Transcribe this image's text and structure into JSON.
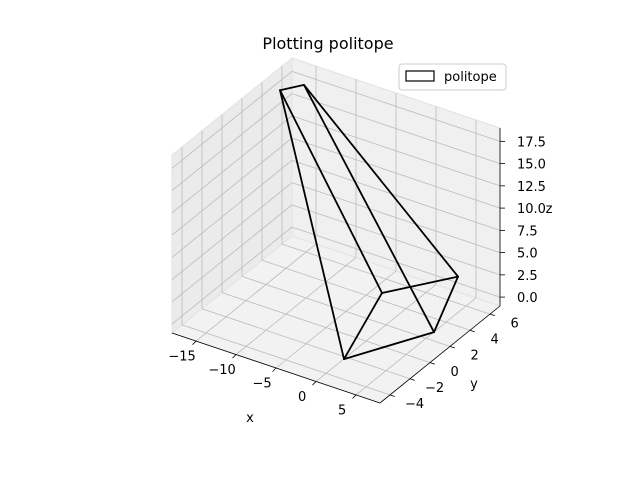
{
  "chart_data": {
    "type": "line3d",
    "title": "Plotting politope",
    "xlabel": "x",
    "ylabel": "y",
    "zlabel": "z",
    "xlim": [
      -18,
      8
    ],
    "ylim": [
      -5,
      7
    ],
    "zlim": [
      -1,
      19
    ],
    "x_ticks": [
      -15,
      -10,
      -5,
      0,
      5
    ],
    "y_ticks": [
      -4,
      -2,
      0,
      2,
      4,
      6
    ],
    "z_ticks": [
      "0.0",
      "2.5",
      "5.0",
      "7.5",
      "10.0",
      "12.5",
      "15.0",
      "17.5"
    ],
    "grid": true,
    "legend": {
      "placement": "top-right",
      "entries": [
        "politope"
      ]
    },
    "series": [
      {
        "name": "politope",
        "color": "#000000",
        "vertices": [
          {
            "x": -14,
            "y": 5,
            "z": 19
          },
          {
            "x": -17,
            "y": 5,
            "z": 17.5
          },
          {
            "x": 4,
            "y": 6,
            "z": 2
          },
          {
            "x": 6,
            "y": 2,
            "z": 0
          },
          {
            "x": 1,
            "y": -3,
            "z": 0
          },
          {
            "x": 2,
            "y": 0,
            "z": 5
          }
        ],
        "edges": [
          [
            0,
            1
          ],
          [
            0,
            2
          ],
          [
            0,
            3
          ],
          [
            1,
            5
          ],
          [
            1,
            4
          ],
          [
            5,
            2
          ],
          [
            5,
            4
          ],
          [
            4,
            3
          ],
          [
            3,
            2
          ]
        ]
      }
    ]
  }
}
